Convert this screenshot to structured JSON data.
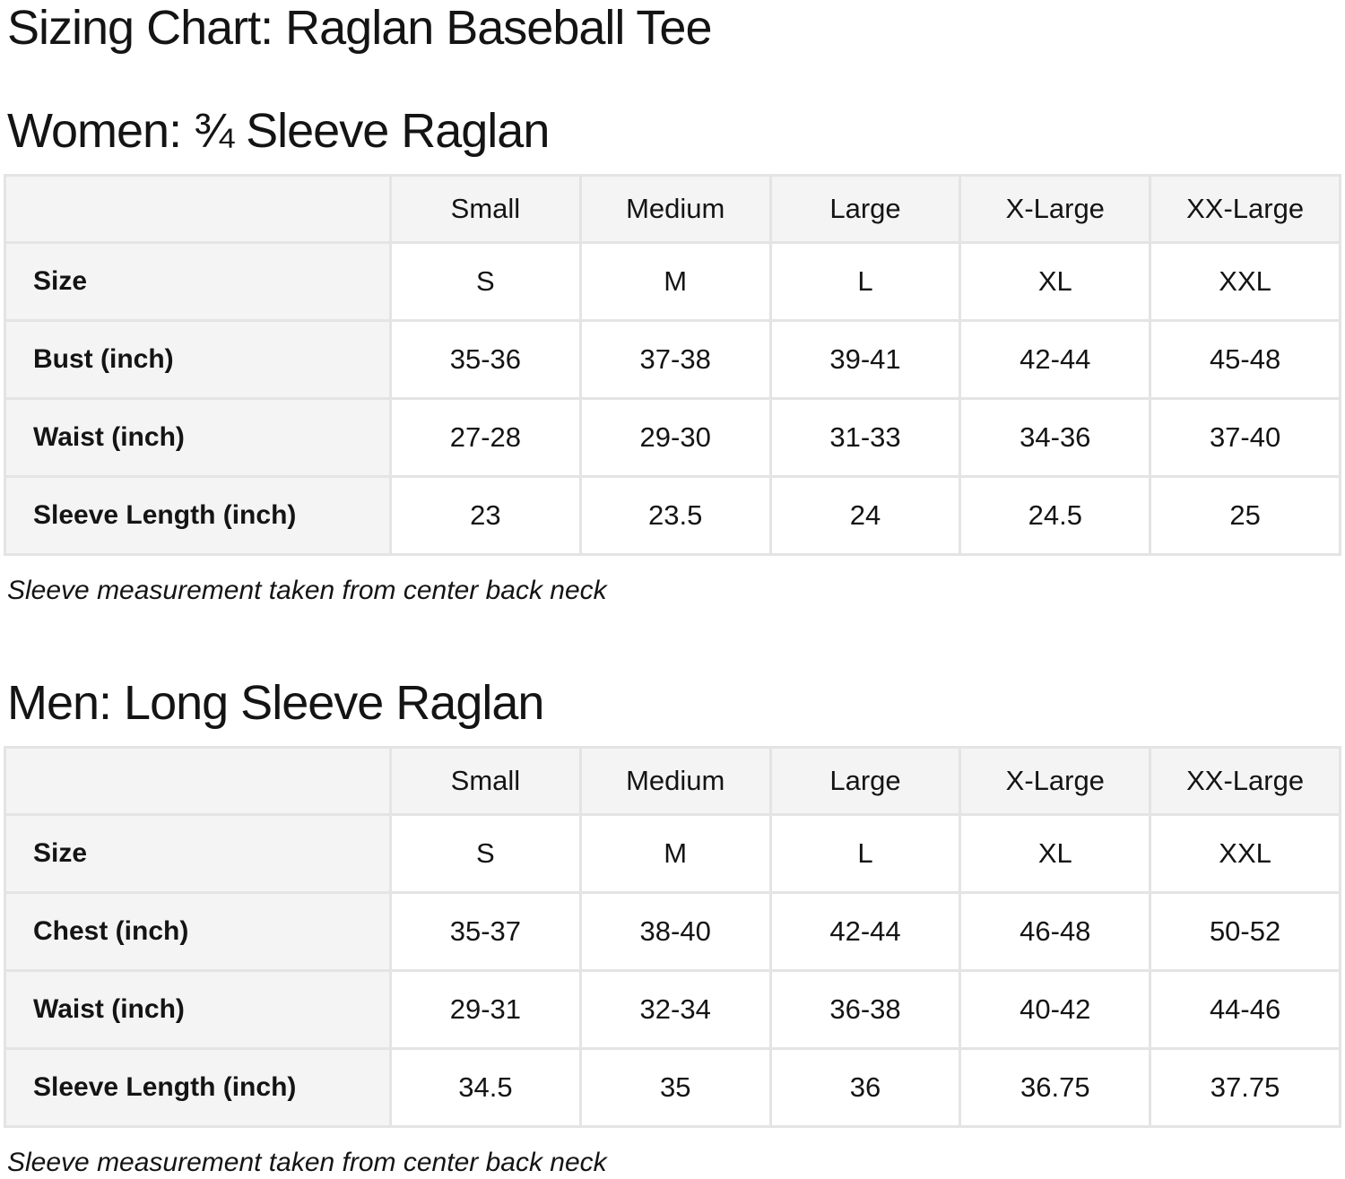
{
  "page": {
    "title": "Sizing Chart: Raglan Baseball Tee"
  },
  "sections": [
    {
      "heading": "Women: ¾ Sleeve Raglan",
      "columns": [
        "Small",
        "Medium",
        "Large",
        "X-Large",
        "XX-Large"
      ],
      "rows": [
        {
          "label": "Size",
          "values": [
            "S",
            "M",
            "L",
            "XL",
            "XXL"
          ]
        },
        {
          "label": "Bust (inch)",
          "values": [
            "35-36",
            "37-38",
            "39-41",
            "42-44",
            "45-48"
          ]
        },
        {
          "label": "Waist (inch)",
          "values": [
            "27-28",
            "29-30",
            "31-33",
            "34-36",
            "37-40"
          ]
        },
        {
          "label": "Sleeve Length (inch)",
          "values": [
            "23",
            "23.5",
            "24",
            "24.5",
            "25"
          ]
        }
      ],
      "note": "Sleeve measurement taken from center back neck"
    },
    {
      "heading": "Men: Long Sleeve Raglan",
      "columns": [
        "Small",
        "Medium",
        "Large",
        "X-Large",
        "XX-Large"
      ],
      "rows": [
        {
          "label": "Size",
          "values": [
            "S",
            "M",
            "L",
            "XL",
            "XXL"
          ]
        },
        {
          "label": "Chest (inch)",
          "values": [
            "35-37",
            "38-40",
            "42-44",
            "46-48",
            "50-52"
          ]
        },
        {
          "label": "Waist (inch)",
          "values": [
            "29-31",
            "32-34",
            "36-38",
            "40-42",
            "44-46"
          ]
        },
        {
          "label": "Sleeve Length (inch)",
          "values": [
            "34.5",
            "35",
            "36",
            "36.75",
            "37.75"
          ]
        }
      ],
      "note": "Sleeve measurement taken from center back neck"
    }
  ],
  "colors": {
    "header_cell_bg": "#f4f4f4",
    "border": "#e4e4e4",
    "text": "#141414",
    "background": "#ffffff"
  }
}
